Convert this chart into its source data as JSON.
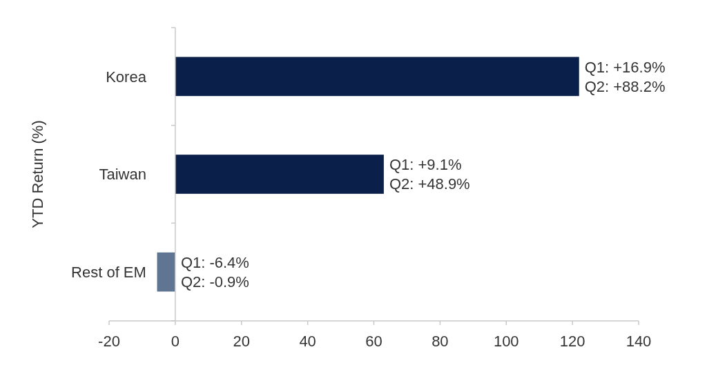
{
  "chart_data": {
    "type": "bar",
    "orientation": "horizontal",
    "ylabel": "YTD Return (%)",
    "categories": [
      "Korea",
      "Taiwan",
      "Rest of EM"
    ],
    "values": [
      122,
      63,
      -5.5
    ],
    "colors": [
      "#0b1f4b",
      "#0b1f4b",
      "#5f7591"
    ],
    "annotations": [
      {
        "text": "Q1: +16.9%\nQ2: +88.2%",
        "x": 122,
        "y": "Korea"
      },
      {
        "text": "Q1: +9.1%\nQ2: +48.9%",
        "x": 63,
        "y": "Taiwan"
      },
      {
        "text": "Q1: -6.4%\nQ2: -0.9%",
        "x": 0,
        "y": "Rest of EM"
      }
    ],
    "xlim": [
      -20,
      140
    ],
    "xticks": [
      -20,
      0,
      20,
      40,
      60,
      80,
      100,
      120,
      140
    ],
    "grid": false
  }
}
